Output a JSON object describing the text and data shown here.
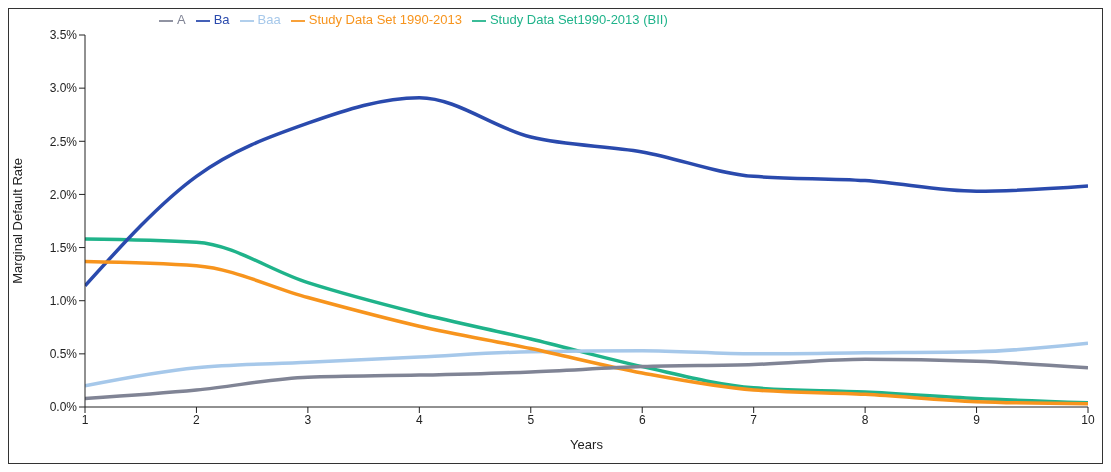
{
  "chart_data": {
    "type": "line",
    "xlabel": "Years",
    "ylabel": "Marginal Default Rate",
    "x": [
      1,
      2,
      3,
      4,
      5,
      6,
      7,
      8,
      9,
      10
    ],
    "xlim": [
      1,
      10
    ],
    "xticks": [
      1,
      2,
      3,
      4,
      5,
      6,
      7,
      8,
      9,
      10
    ],
    "ylim": [
      0,
      3.5
    ],
    "yticks": [
      {
        "value": 0,
        "label": "0.0%"
      },
      {
        "value": 0.5,
        "label": "0.5%"
      },
      {
        "value": 1,
        "label": "1.0%"
      },
      {
        "value": 1.5,
        "label": "1.5%"
      },
      {
        "value": 2,
        "label": "2.0%"
      },
      {
        "value": 2.5,
        "label": "2.5%"
      },
      {
        "value": 3,
        "label": "3.0%"
      },
      {
        "value": 3.5,
        "label": "3.5%"
      }
    ],
    "grid": false,
    "legend": "top left",
    "marker": "none",
    "line_style": "solid",
    "series": [
      {
        "name": "Study Data Set1990-2013 (BII)",
        "color": "#1fb38a",
        "values": [
          1.58,
          1.55,
          1.17,
          0.88,
          0.64,
          0.38,
          0.18,
          0.14,
          0.08,
          0.04
        ]
      },
      {
        "name": "Baa",
        "color": "#a6c8ea",
        "values": [
          0.2,
          0.37,
          0.42,
          0.47,
          0.52,
          0.53,
          0.5,
          0.51,
          0.52,
          0.6
        ]
      },
      {
        "name": "Ba",
        "color": "#2a4aad",
        "values": [
          1.14,
          2.17,
          2.67,
          2.91,
          2.54,
          2.4,
          2.17,
          2.13,
          2.03,
          2.08
        ]
      },
      {
        "name": "Study Data Set 1990-2013",
        "color": "#f7941d",
        "values": [
          1.37,
          1.33,
          1.03,
          0.76,
          0.55,
          0.32,
          0.16,
          0.12,
          0.05,
          0.03
        ]
      },
      {
        "name": "A",
        "color": "#808495",
        "values": [
          0.08,
          0.16,
          0.28,
          0.3,
          0.33,
          0.38,
          0.4,
          0.45,
          0.43,
          0.37
        ]
      }
    ]
  }
}
